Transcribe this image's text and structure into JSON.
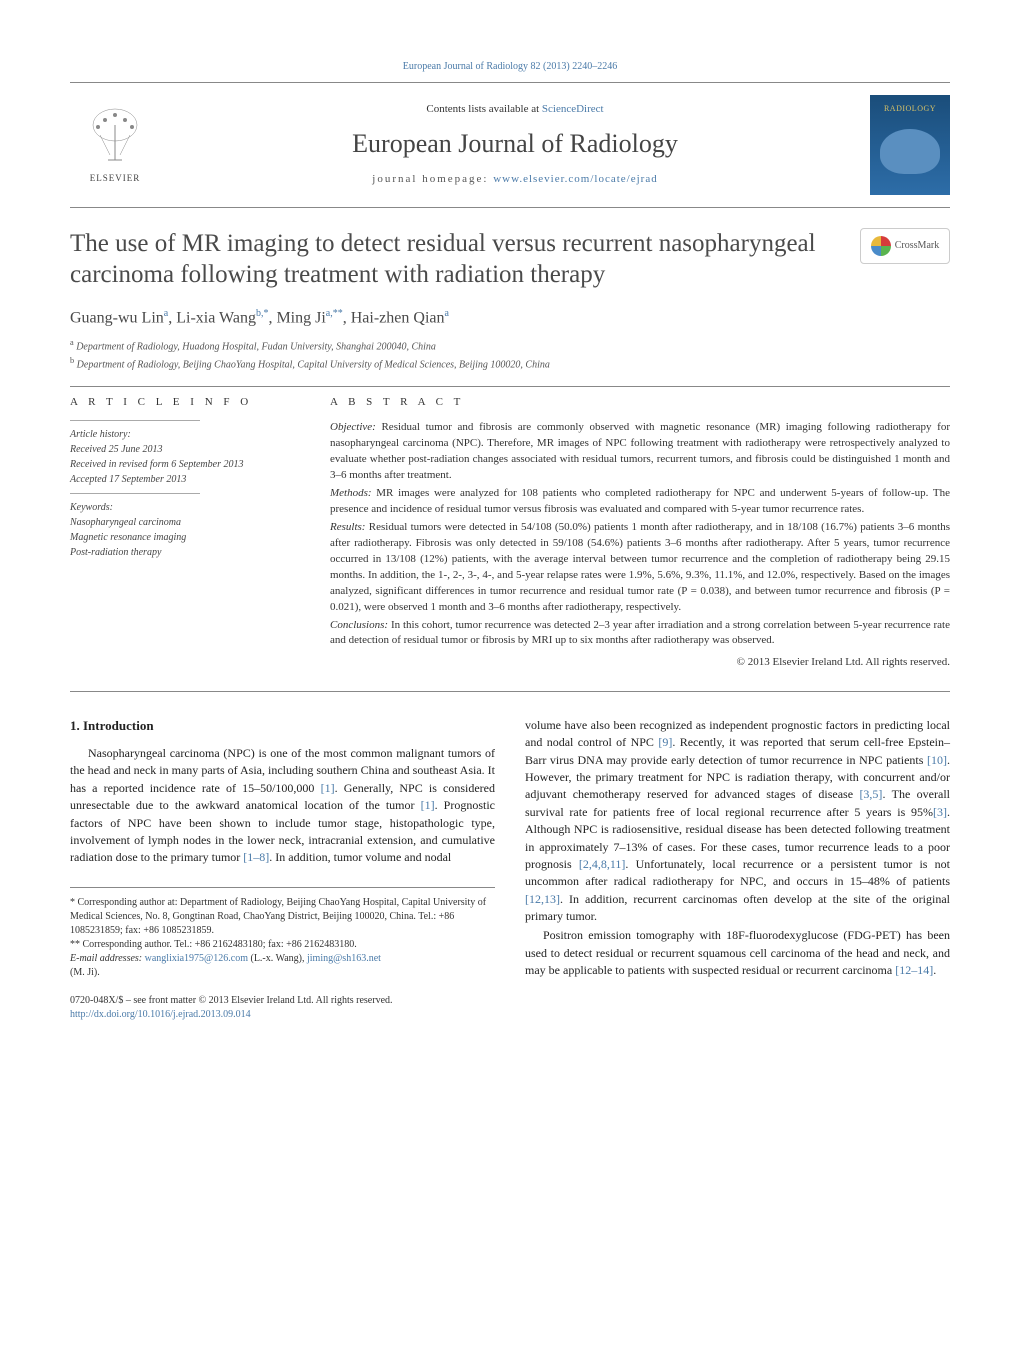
{
  "header": {
    "citation_link": "European Journal of Radiology 82 (2013) 2240–2246",
    "contents_prefix": "Contents lists available at ",
    "contents_link": "ScienceDirect",
    "journal_name": "European Journal of Radiology",
    "homepage_prefix": "journal homepage: ",
    "homepage_link": "www.elsevier.com/locate/ejrad",
    "publisher": "ELSEVIER",
    "cover_text": "RADIOLOGY"
  },
  "crossmark": {
    "label": "CrossMark"
  },
  "title": "The use of MR imaging to detect residual versus recurrent nasopharyngeal carcinoma following treatment with radiation therapy",
  "authors_html": "Guang-wu Lin<sup>a</sup>, Li-xia Wang<sup>b,*</sup>, Ming Ji<sup>a,**</sup>, Hai-zhen Qian<sup>a</sup>",
  "affiliations": {
    "a": "Department of Radiology, Huadong Hospital, Fudan University, Shanghai 200040, China",
    "b": "Department of Radiology, Beijing ChaoYang Hospital, Capital University of Medical Sciences, Beijing 100020, China"
  },
  "article_info": {
    "heading": "A R T I C L E   I N F O",
    "history_label": "Article history:",
    "received": "Received 25 June 2013",
    "revised": "Received in revised form 6 September 2013",
    "accepted": "Accepted 17 September 2013",
    "keywords_label": "Keywords:",
    "keywords": [
      "Nasopharyngeal carcinoma",
      "Magnetic resonance imaging",
      "Post-radiation therapy"
    ]
  },
  "abstract": {
    "heading": "A B S T R A C T",
    "objective_label": "Objective:",
    "objective": "Residual tumor and fibrosis are commonly observed with magnetic resonance (MR) imaging following radiotherapy for nasopharyngeal carcinoma (NPC). Therefore, MR images of NPC following treatment with radiotherapy were retrospectively analyzed to evaluate whether post-radiation changes associated with residual tumors, recurrent tumors, and fibrosis could be distinguished 1 month and 3–6 months after treatment.",
    "methods_label": "Methods:",
    "methods": "MR images were analyzed for 108 patients who completed radiotherapy for NPC and underwent 5-years of follow-up. The presence and incidence of residual tumor versus fibrosis was evaluated and compared with 5-year tumor recurrence rates.",
    "results_label": "Results:",
    "results": "Residual tumors were detected in 54/108 (50.0%) patients 1 month after radiotherapy, and in 18/108 (16.7%) patients 3–6 months after radiotherapy. Fibrosis was only detected in 59/108 (54.6%) patients 3–6 months after radiotherapy. After 5 years, tumor recurrence occurred in 13/108 (12%) patients, with the average interval between tumor recurrence and the completion of radiotherapy being 29.15 months. In addition, the 1-, 2-, 3-, 4-, and 5-year relapse rates were 1.9%, 5.6%, 9.3%, 11.1%, and 12.0%, respectively. Based on the images analyzed, significant differences in tumor recurrence and residual tumor rate (P = 0.038), and between tumor recurrence and fibrosis (P = 0.021), were observed 1 month and 3–6 months after radiotherapy, respectively.",
    "conclusions_label": "Conclusions:",
    "conclusions": "In this cohort, tumor recurrence was detected 2–3 year after irradiation and a strong correlation between 5-year recurrence rate and detection of residual tumor or fibrosis by MRI up to six months after radiotherapy was observed.",
    "copyright": "© 2013 Elsevier Ireland Ltd. All rights reserved."
  },
  "body": {
    "intro_heading": "1. Introduction",
    "col1_p1": "Nasopharyngeal carcinoma (NPC) is one of the most common malignant tumors of the head and neck in many parts of Asia, including southern China and southeast Asia. It has a reported incidence rate of 15–50/100,000 ",
    "col1_ref1": "[1]",
    "col1_p1b": ". Generally, NPC is considered unresectable due to the awkward anatomical location of the tumor ",
    "col1_ref2": "[1]",
    "col1_p1c": ". Prognostic factors of NPC have been shown to include tumor stage, histopathologic type, involvement of lymph nodes in the lower neck, intracranial extension, and cumulative radiation dose to the primary tumor ",
    "col1_ref3": "[1–8]",
    "col1_p1d": ". In addition, tumor volume and nodal",
    "col2_p1a": "volume have also been recognized as independent prognostic factors in predicting local and nodal control of NPC ",
    "col2_ref1": "[9]",
    "col2_p1b": ". Recently, it was reported that serum cell-free Epstein–Barr virus DNA may provide early detection of tumor recurrence in NPC patients ",
    "col2_ref2": "[10]",
    "col2_p1c": ". However, the primary treatment for NPC is radiation therapy, with concurrent and/or adjuvant chemotherapy reserved for advanced stages of disease ",
    "col2_ref3": "[3,5]",
    "col2_p1d": ". The overall survival rate for patients free of local regional recurrence after 5 years is 95%",
    "col2_ref4": "[3]",
    "col2_p1e": ". Although NPC is radiosensitive, residual disease has been detected following treatment in approximately 7–13% of cases. For these cases, tumor recurrence leads to a poor prognosis ",
    "col2_ref5": "[2,4,8,11]",
    "col2_p1f": ". Unfortunately, local recurrence or a persistent tumor is not uncommon after radical radiotherapy for NPC, and occurs in 15–48% of patients ",
    "col2_ref6": "[12,13]",
    "col2_p1g": ". In addition, recurrent carcinomas often develop at the site of the original primary tumor.",
    "col2_p2": "Positron emission tomography with 18F-fluorodexyglucose (FDG-PET) has been used to detect residual or recurrent squamous cell carcinoma of the head and neck, and may be applicable to patients with suspected residual or recurrent carcinoma ",
    "col2_ref7": "[12–14]",
    "col2_p2b": "."
  },
  "footnotes": {
    "corr1": "* Corresponding author at: Department of Radiology, Beijing ChaoYang Hospital, Capital University of Medical Sciences, No. 8, Gongtinan Road, ChaoYang District, Beijing 100020, China. Tel.: +86 1085231859; fax: +86 1085231859.",
    "corr2": "** Corresponding author. Tel.: +86 2162483180; fax: +86 2162483180.",
    "email_label": "E-mail addresses: ",
    "email1": "wanglixia1975@126.com",
    "email1_who": " (L.-x. Wang), ",
    "email2": "jiming@sh163.net",
    "email2_who": " (M. Ji)."
  },
  "footer": {
    "issn": "0720-048X/$ – see front matter © 2013 Elsevier Ireland Ltd. All rights reserved.",
    "doi": "http://dx.doi.org/10.1016/j.ejrad.2013.09.014"
  },
  "colors": {
    "link": "#4a7aa8",
    "text": "#222222",
    "heading": "#4a4a4a",
    "border": "#888888"
  }
}
